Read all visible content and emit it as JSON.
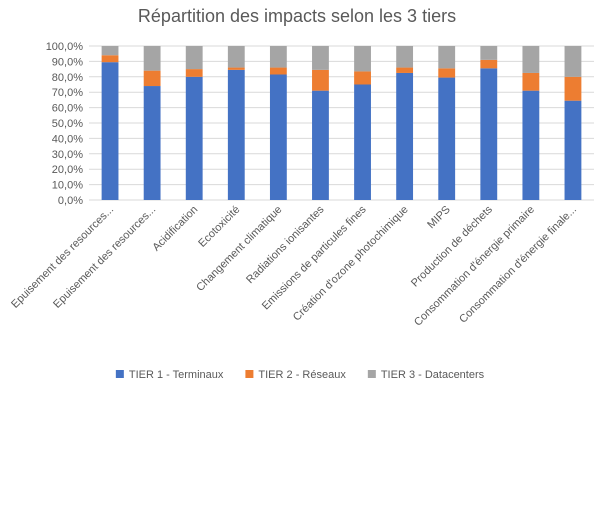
{
  "chart_data": {
    "type": "bar",
    "stacked": true,
    "title": "Répartition des impacts selon les 3 tiers",
    "xlabel": "",
    "ylabel": "",
    "ylim": [
      0,
      100
    ],
    "ytick_labels": [
      "0,0%",
      "10,0%",
      "20,0%",
      "30,0%",
      "40,0%",
      "50,0%",
      "60,0%",
      "70,0%",
      "80,0%",
      "90,0%",
      "100,0%"
    ],
    "grid": true,
    "legend_position": "bottom",
    "categories": [
      "Epuisement des resources...",
      "Epuisement des resources...",
      "Acidification",
      "Ecotoxicité",
      "Changement climatique",
      "Radiations ionisantes",
      "Emissions de particules fines",
      "Création d'ozone photochimique",
      "MIPS",
      "Production de déchets",
      "Consommation d'énergie primaire",
      "Consommation d'énergie finale..."
    ],
    "series": [
      {
        "name": "TIER 1 - Terminaux",
        "color": "#4472c4",
        "values": [
          89.5,
          74,
          80,
          84.5,
          81.5,
          71,
          75,
          82.5,
          79.5,
          85.5,
          71,
          64.5
        ]
      },
      {
        "name": "TIER 2 - Réseaux",
        "color": "#ed7d31",
        "values": [
          4.5,
          10,
          5,
          1.5,
          4.5,
          13.5,
          8.5,
          3.5,
          6,
          5.5,
          11.5,
          15.5
        ]
      },
      {
        "name": "TIER 3 - Datacenters",
        "color": "#a5a5a5",
        "values": [
          6,
          16,
          15,
          14,
          14,
          15.5,
          16.5,
          14,
          14.5,
          9,
          17.5,
          20
        ]
      }
    ]
  }
}
